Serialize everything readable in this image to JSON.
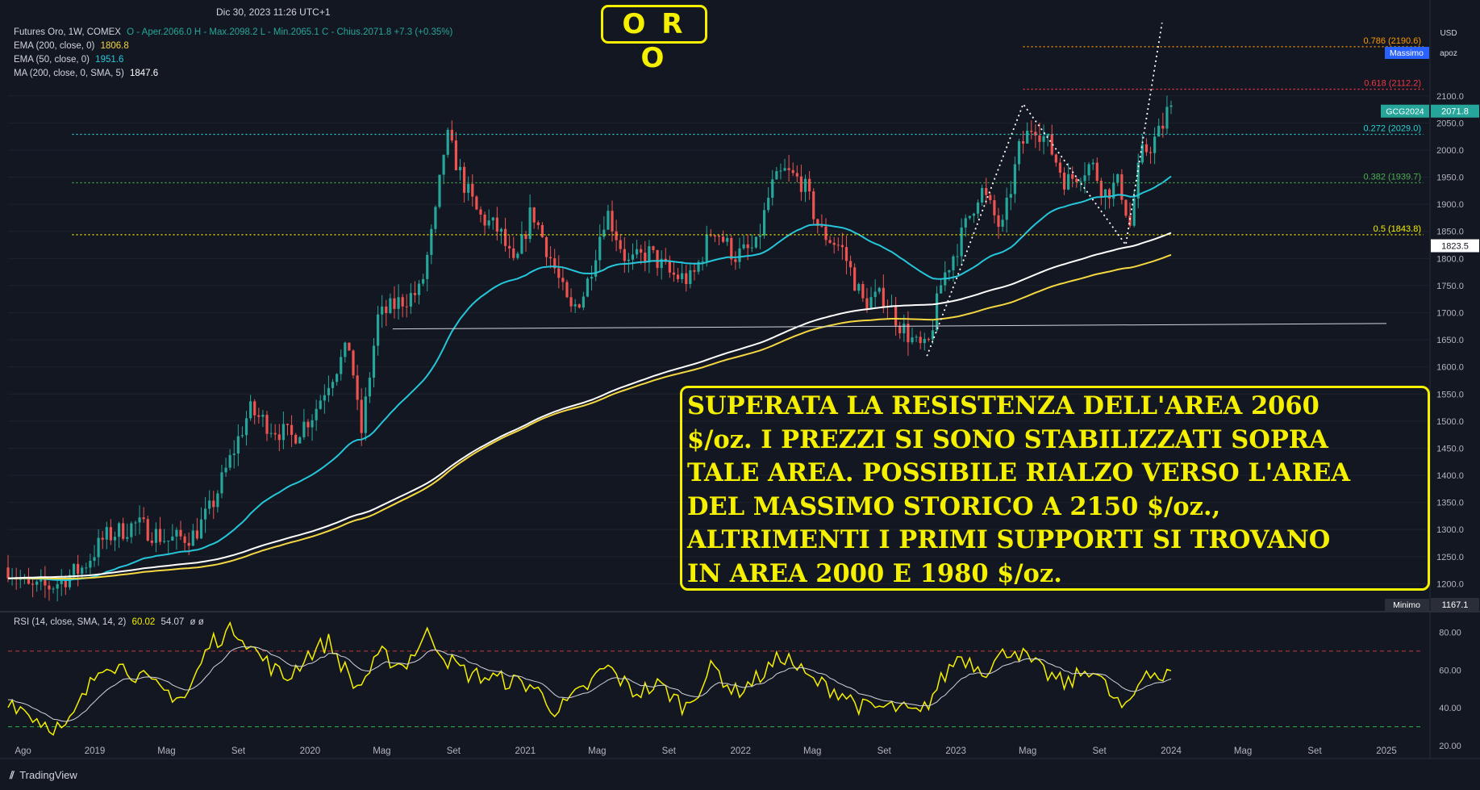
{
  "header": {
    "datetime": "Dic 30, 2023 11:26 UTC+1",
    "title": "O R O",
    "symbol_line": "Futures Oro, 1W, COMEX",
    "ohlc": "O - Aper.2066.0  H - Max.2098.2  L - Min.2065.1  C - Chius.2071.8  +7.3 (+0.35%)",
    "ema200_label": "EMA (200, close, 0)",
    "ema200_value": "1806.8",
    "ema50_label": "EMA (50, close, 0)",
    "ema50_value": "1951.6",
    "ma200_label": "MA (200, close, 0, SMA, 5)",
    "ma200_value": "1847.6"
  },
  "buttons": {
    "currency": "USD",
    "scale": "apoz"
  },
  "annotation": "SUPERATA LA RESISTENZA DELL'AREA 2060\n$/oz. I PREZZI SI SONO STABILIZZATI SOPRA\nTALE AREA. POSSIBILE RIALZO VERSO L'AREA\nDEL MASSIMO STORICO A 2150 $/oz.,\nALTRIMENTI  I PRIMI SUPPORTI SI TROVANO\nIN AREA 2000 E 1980 $/oz.",
  "rsi_legend": {
    "label": "RSI (14, close, SMA, 14, 2)",
    "v1": "60.02",
    "v2": "54.07",
    "v3": "ø  ø"
  },
  "brand": "TradingView",
  "colors": {
    "bg": "#131722",
    "up": "#26a69a",
    "down": "#ef5350",
    "ema200": "#f5d742",
    "ema50": "#26c6da",
    "ma200": "#ffffff",
    "accent": "#f5f000"
  },
  "chart_data": [
    {
      "type": "candlestick",
      "symbol": "GCG2024",
      "timeframe": "1W",
      "ylim": [
        1150,
        2250
      ],
      "y_ticks": [
        1200,
        1250,
        1300,
        1350,
        1400,
        1450,
        1500,
        1550,
        1600,
        1650,
        1700,
        1750,
        1800,
        1850,
        1900,
        1950,
        2000,
        2050,
        2100
      ],
      "x_tick_labels": [
        "Ago",
        "2019",
        "Mag",
        "Set",
        "2020",
        "Mag",
        "Set",
        "2021",
        "Mag",
        "Set",
        "2022",
        "Mag",
        "Set",
        "2023",
        "Mag",
        "Set",
        "2024",
        "Mag",
        "Set",
        "2025"
      ],
      "price_path": [
        [
          2018.55,
          1230
        ],
        [
          2018.65,
          1190
        ],
        [
          2018.75,
          1195
        ],
        [
          2018.9,
          1230
        ],
        [
          2019.0,
          1285
        ],
        [
          2019.15,
          1310
        ],
        [
          2019.3,
          1280
        ],
        [
          2019.42,
          1290
        ],
        [
          2019.5,
          1340
        ],
        [
          2019.58,
          1420
        ],
        [
          2019.68,
          1520
        ],
        [
          2019.78,
          1490
        ],
        [
          2019.88,
          1470
        ],
        [
          2019.98,
          1515
        ],
        [
          2020.05,
          1575
        ],
        [
          2020.15,
          1640
        ],
        [
          2020.2,
          1470
        ],
        [
          2020.28,
          1690
        ],
        [
          2020.38,
          1720
        ],
        [
          2020.48,
          1740
        ],
        [
          2020.55,
          1880
        ],
        [
          2020.6,
          2030
        ],
        [
          2020.68,
          1940
        ],
        [
          2020.75,
          1880
        ],
        [
          2020.85,
          1850
        ],
        [
          2020.92,
          1780
        ],
        [
          2021.0,
          1890
        ],
        [
          2021.1,
          1790
        ],
        [
          2021.18,
          1700
        ],
        [
          2021.25,
          1740
        ],
        [
          2021.35,
          1890
        ],
        [
          2021.45,
          1790
        ],
        [
          2021.55,
          1810
        ],
        [
          2021.65,
          1770
        ],
        [
          2021.75,
          1760
        ],
        [
          2021.85,
          1860
        ],
        [
          2021.95,
          1805
        ],
        [
          2022.05,
          1820
        ],
        [
          2022.12,
          1930
        ],
        [
          2022.18,
          1960
        ],
        [
          2022.27,
          1940
        ],
        [
          2022.35,
          1850
        ],
        [
          2022.45,
          1820
        ],
        [
          2022.55,
          1720
        ],
        [
          2022.65,
          1730
        ],
        [
          2022.72,
          1680
        ],
        [
          2022.8,
          1640
        ],
        [
          2022.85,
          1630
        ],
        [
          2022.92,
          1760
        ],
        [
          2023.0,
          1830
        ],
        [
          2023.1,
          1930
        ],
        [
          2023.2,
          1850
        ],
        [
          2023.28,
          2000
        ],
        [
          2023.35,
          2050
        ],
        [
          2023.42,
          2010
        ],
        [
          2023.5,
          1940
        ],
        [
          2023.55,
          1955
        ],
        [
          2023.62,
          1975
        ],
        [
          2023.68,
          1920
        ],
        [
          2023.75,
          1940
        ],
        [
          2023.8,
          1860
        ],
        [
          2023.85,
          1990
        ],
        [
          2023.9,
          2010
        ],
        [
          2023.95,
          2040
        ],
        [
          2023.97,
          2070
        ],
        [
          2024.0,
          2072
        ]
      ],
      "ema200_value": 1806.8,
      "ema50_value": 1951.6,
      "ma200_value": 1847.6,
      "current_price": "2071.8",
      "current_price_label": "GCG2024",
      "crosshair_price": "1823.5",
      "max_label": "Massimo",
      "min_label": "Minimo",
      "min_value": "1167.1",
      "support_line": {
        "from": [
          2020.35,
          1670
        ],
        "to": [
          2025.0,
          1680
        ]
      },
      "fib_levels": [
        {
          "label": "0.786 (2190.6)",
          "value": 2190.6,
          "color": "#ff9800"
        },
        {
          "label": "0.618 (2112.2)",
          "value": 2112.2,
          "color": "#f23645"
        },
        {
          "label": "0.272 (2029.0)",
          "value": 2029.0,
          "color": "#22d3d3"
        },
        {
          "label": "0.382 (1939.7)",
          "value": 1939.7,
          "color": "#4caf50"
        },
        {
          "label": "0.5 (1843.8)",
          "value": 1843.8,
          "color": "#f5f000"
        }
      ],
      "zigzag": [
        [
          2022.85,
          1620
        ],
        [
          2023.3,
          2085
        ],
        [
          2023.78,
          1825
        ],
        [
          2023.95,
          2235
        ]
      ]
    },
    {
      "type": "line",
      "name": "RSI",
      "ylim": [
        20,
        90
      ],
      "y_ticks": [
        20,
        40,
        60,
        80
      ],
      "bands": [
        30,
        70
      ],
      "values_path": [
        [
          2018.55,
          45
        ],
        [
          2018.7,
          33
        ],
        [
          2018.82,
          28
        ],
        [
          2018.9,
          45
        ],
        [
          2019.0,
          65
        ],
        [
          2019.12,
          60
        ],
        [
          2019.25,
          50
        ],
        [
          2019.38,
          45
        ],
        [
          2019.5,
          75
        ],
        [
          2019.62,
          82
        ],
        [
          2019.72,
          68
        ],
        [
          2019.85,
          55
        ],
        [
          2019.95,
          68
        ],
        [
          2020.05,
          75
        ],
        [
          2020.18,
          50
        ],
        [
          2020.3,
          68
        ],
        [
          2020.4,
          62
        ],
        [
          2020.52,
          80
        ],
        [
          2020.6,
          66
        ],
        [
          2020.7,
          58
        ],
        [
          2020.85,
          55
        ],
        [
          2021.0,
          52
        ],
        [
          2021.12,
          38
        ],
        [
          2021.25,
          50
        ],
        [
          2021.35,
          62
        ],
        [
          2021.48,
          48
        ],
        [
          2021.6,
          52
        ],
        [
          2021.72,
          40
        ],
        [
          2021.85,
          62
        ],
        [
          2021.95,
          48
        ],
        [
          2022.05,
          55
        ],
        [
          2022.18,
          68
        ],
        [
          2022.3,
          55
        ],
        [
          2022.45,
          48
        ],
        [
          2022.55,
          40
        ],
        [
          2022.7,
          40
        ],
        [
          2022.82,
          36
        ],
        [
          2022.92,
          55
        ],
        [
          2023.0,
          68
        ],
        [
          2023.12,
          60
        ],
        [
          2023.25,
          72
        ],
        [
          2023.38,
          60
        ],
        [
          2023.5,
          52
        ],
        [
          2023.62,
          62
        ],
        [
          2023.72,
          45
        ],
        [
          2023.78,
          38
        ],
        [
          2023.88,
          62
        ],
        [
          2023.95,
          55
        ],
        [
          2024.0,
          60
        ]
      ]
    }
  ]
}
